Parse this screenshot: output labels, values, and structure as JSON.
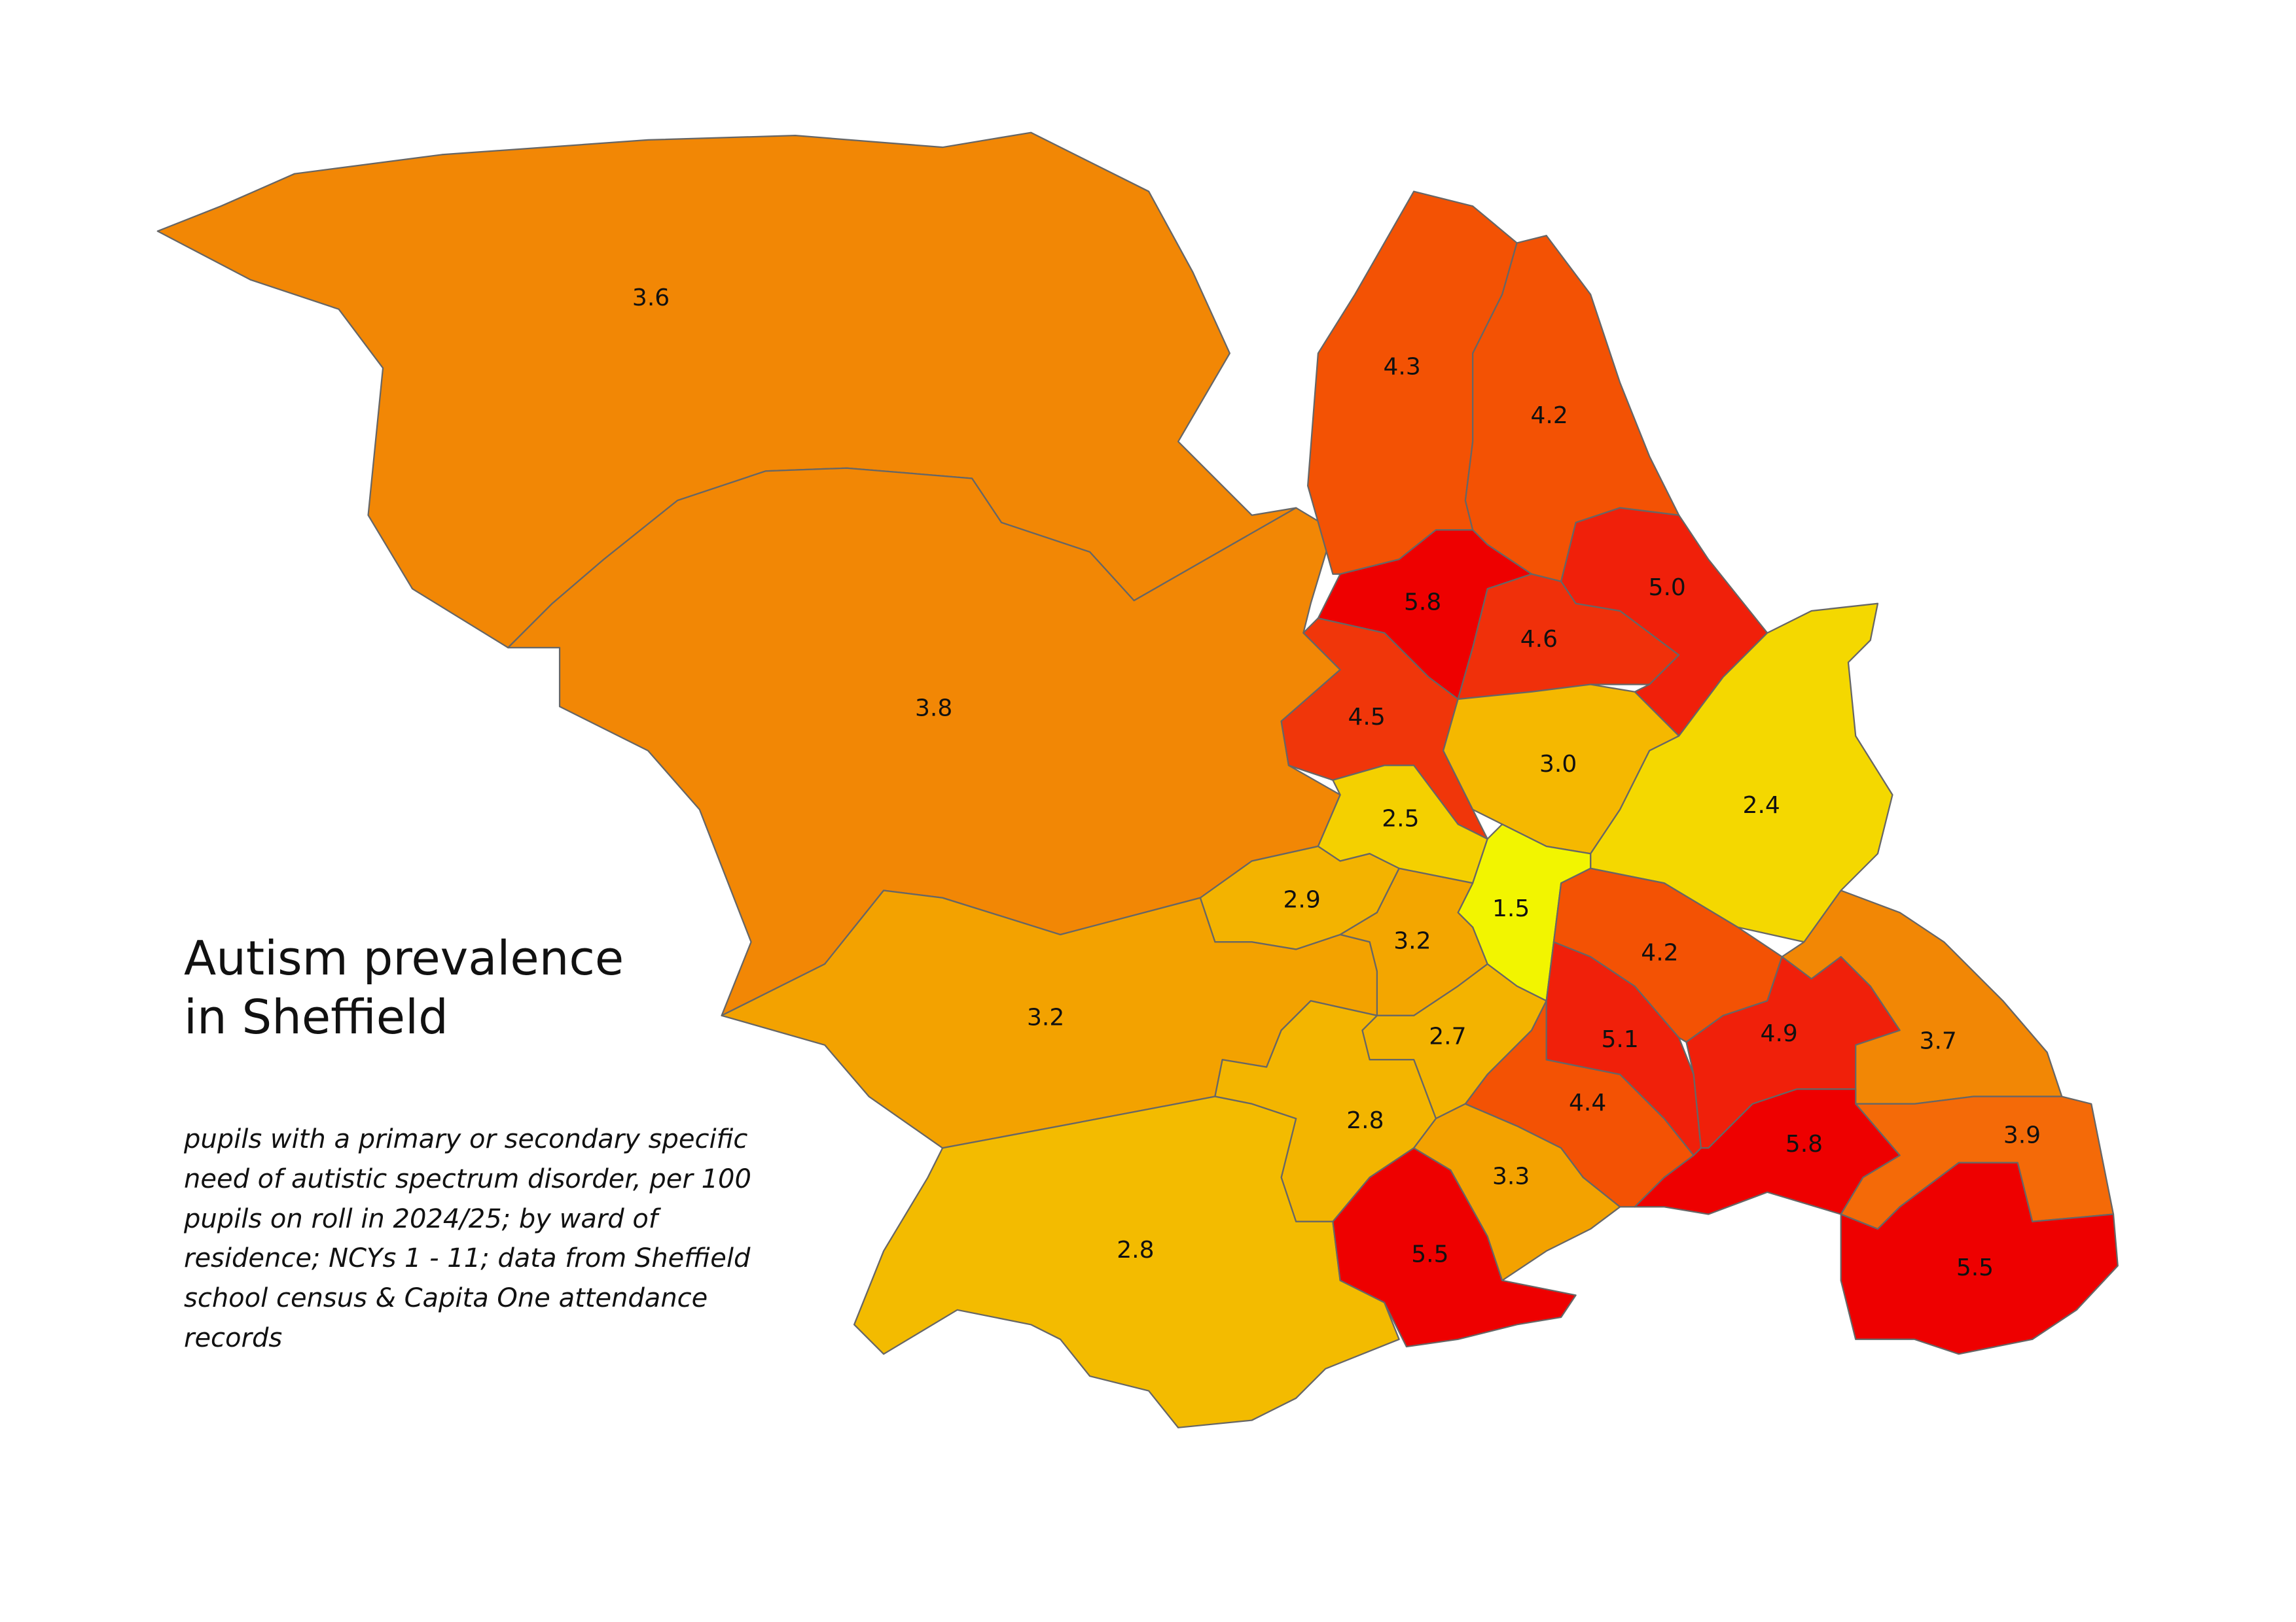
{
  "chart_data": {
    "type": "choropleth",
    "title": "Autism prevalence in Sheffield",
    "subtitle": "pupils with a primary or secondary specific need of autistic spectrum disorder, per 100 pupils on roll in 2024/25; by ward of residence; NCYs 1 - 11; data from Sheffield school census & Capita One attendance records",
    "values": [
      3.6,
      3.8,
      4.3,
      4.2,
      5.8,
      4.6,
      5.0,
      4.5,
      3.0,
      2.4,
      2.5,
      1.5,
      2.9,
      3.2,
      3.2,
      2.7,
      2.8,
      2.8,
      5.5,
      3.3,
      4.4,
      5.1,
      4.2,
      4.9,
      3.7,
      5.8,
      3.9,
      5.5
    ],
    "value_labels": [
      "3.6",
      "3.8",
      "4.3",
      "4.2",
      "5.8",
      "4.6",
      "5.0",
      "4.5",
      "3.0",
      "2.4",
      "2.5",
      "1.5",
      "2.9",
      "3.2",
      "3.2",
      "2.7",
      "2.8",
      "2.8",
      "5.5",
      "3.3",
      "4.4",
      "5.1",
      "4.2",
      "4.9",
      "3.7",
      "5.8",
      "3.9",
      "5.5"
    ],
    "colors": [
      "#f28705",
      "#f28705",
      "#f35204",
      "#f35204",
      "#ee0000",
      "#f0300a",
      "#f0200a",
      "#f0360a",
      "#f5b800",
      "#f4d800",
      "#f4d000",
      "#f2f500",
      "#f3b300",
      "#f3a600",
      "#f3a200",
      "#f3b300",
      "#f3b500",
      "#f3bb00",
      "#ee0000",
      "#f3a200",
      "#f35204",
      "#f0200a",
      "#f35204",
      "#f0200a",
      "#f28705",
      "#ee0000",
      "#f46a08",
      "#ee0000"
    ]
  }
}
